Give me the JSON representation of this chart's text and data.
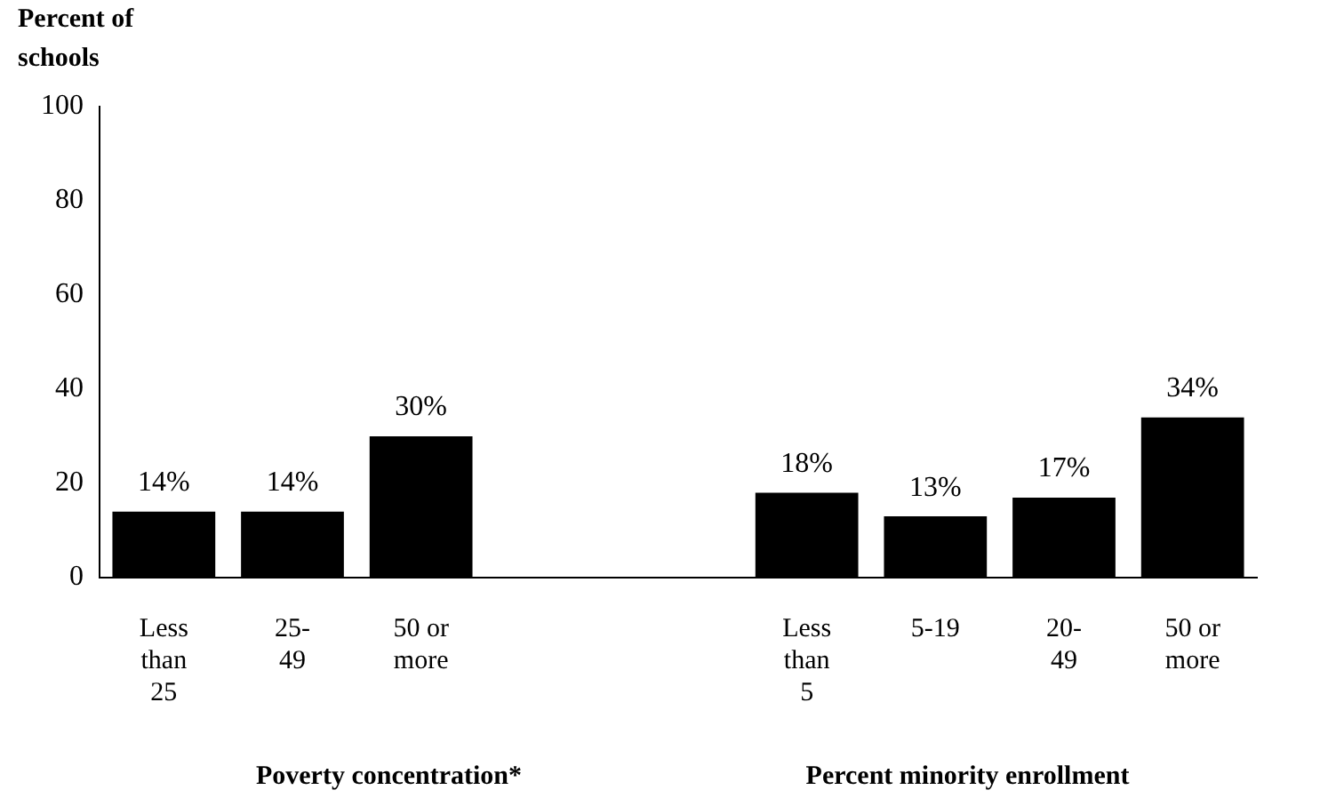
{
  "chart_data": {
    "type": "bar",
    "ylabel": "Percent of schools",
    "categories": [
      "Less than 25",
      "25-49",
      "50 or more",
      null,
      null,
      "Less than 5",
      "5-19",
      "20-49",
      "50 or more"
    ],
    "values": [
      14,
      14,
      30,
      null,
      null,
      18,
      13,
      17,
      34
    ],
    "color": "#000000",
    "value_labels": [
      "14%",
      "14%",
      "30%",
      null,
      null,
      "18%",
      "13%",
      "17%",
      "34%"
    ],
    "ylim": [
      0,
      100
    ],
    "yticks": [
      0,
      20,
      40,
      60,
      80,
      100
    ],
    "grid": false,
    "legend": false,
    "annotations": [
      "Poverty concentration*",
      "Percent minority enrollment"
    ]
  }
}
